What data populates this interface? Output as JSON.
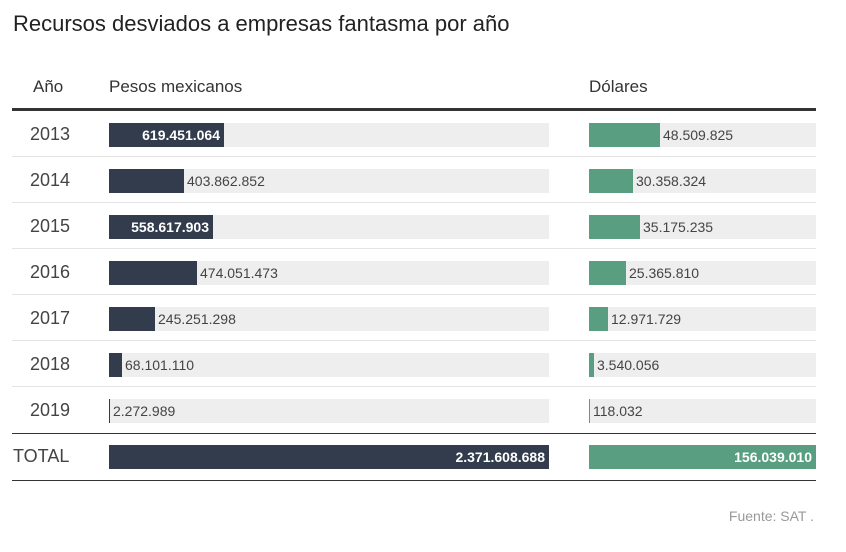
{
  "title": "Recursos desviados a empresas fantasma por año",
  "headers": {
    "year": "Año",
    "pesos": "Pesos mexicanos",
    "dolares": "Dólares"
  },
  "chart_data": {
    "type": "bar",
    "title": "Recursos desviados a empresas fantasma por año",
    "categories": [
      "2013",
      "2014",
      "2015",
      "2016",
      "2017",
      "2018",
      "2019"
    ],
    "series": [
      {
        "name": "Pesos mexicanos",
        "values": [
          619451064,
          403862852,
          558617903,
          474051473,
          245251298,
          68101110,
          2272989
        ],
        "labels": [
          "619.451.064",
          "403.862.852",
          "558.617.903",
          "474.051.473",
          "245.251.298",
          "68.101.110",
          "2.272.989"
        ],
        "color": "#323c4d"
      },
      {
        "name": "Dólares",
        "values": [
          48509825,
          30358324,
          35175235,
          25365810,
          12971729,
          3540056,
          118032
        ],
        "labels": [
          "48.509.825",
          "30.358.324",
          "35.175.235",
          "25.365.810",
          "12.971.729",
          "3.540.056",
          "118.032"
        ],
        "color": "#5a9e82"
      }
    ],
    "total": {
      "label": "TOTAL",
      "pesos": 2371608688,
      "pesos_label": "2.371.608.688",
      "dolares": 156039010,
      "dolares_label": "156.039.010"
    }
  },
  "source": "Fuente: SAT ."
}
